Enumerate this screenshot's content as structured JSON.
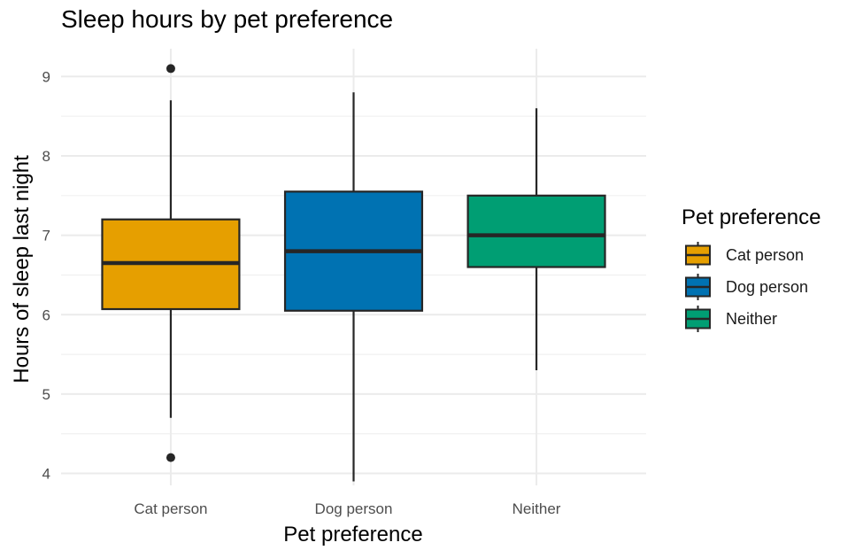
{
  "chart_data": {
    "type": "boxplot",
    "title": "Sleep hours by pet preference",
    "xlabel": "Pet preference",
    "ylabel": "Hours of sleep last night",
    "categories": [
      "Cat person",
      "Dog person",
      "Neither"
    ],
    "ylim": [
      3.85,
      9.35
    ],
    "yticks": [
      4,
      5,
      6,
      7,
      8,
      9
    ],
    "grid": true,
    "boxes": [
      {
        "category": "Cat person",
        "whisker_low": 4.7,
        "q1": 6.07,
        "median": 6.65,
        "q3": 7.2,
        "whisker_high": 8.7,
        "outliers": [
          9.1,
          4.2
        ],
        "color": "#E69F00"
      },
      {
        "category": "Dog person",
        "whisker_low": 3.9,
        "q1": 6.05,
        "median": 6.8,
        "q3": 7.55,
        "whisker_high": 8.8,
        "outliers": [],
        "color": "#0072B2"
      },
      {
        "category": "Neither",
        "whisker_low": 5.3,
        "q1": 6.6,
        "median": 7.0,
        "q3": 7.5,
        "whisker_high": 8.6,
        "outliers": [],
        "color": "#009E73"
      }
    ],
    "legend": {
      "title": "Pet preference",
      "position": "right",
      "items": [
        "Cat person",
        "Dog person",
        "Neither"
      ]
    }
  }
}
